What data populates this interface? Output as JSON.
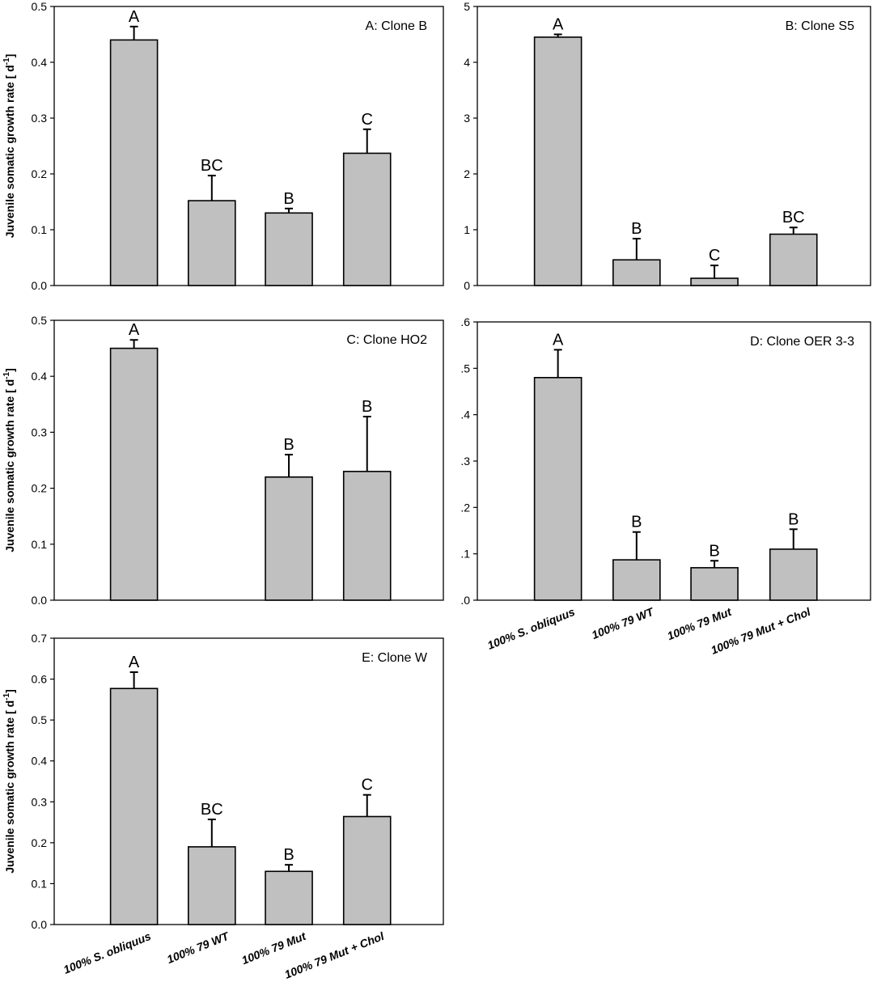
{
  "figure": {
    "ylabel_main": "Juvenile somatic growth rate [ d",
    "ylabel_sup": "-1",
    "ylabel_close": "]",
    "categories": [
      "100% S. obliquus",
      "100% 79 WT",
      "100% 79 Mut",
      "100% 79 Mut + Chol"
    ]
  },
  "chart_data": [
    {
      "type": "bar",
      "title": "A: Clone B",
      "ylim": [
        0,
        0.5
      ],
      "yticks": [
        "0.0",
        "0.1",
        "0.2",
        "0.3",
        "0.4",
        "0.5"
      ],
      "values": [
        0.44,
        0.152,
        0.13,
        0.237
      ],
      "errors": [
        0.024,
        0.045,
        0.008,
        0.043
      ],
      "letters": [
        "A",
        "BC",
        "B",
        "C"
      ]
    },
    {
      "type": "bar",
      "title": "B: Clone S5",
      "ylim": [
        0,
        5
      ],
      "yticks": [
        "0",
        "1",
        "2",
        "3",
        "4",
        "5"
      ],
      "values": [
        4.45,
        0.46,
        0.13,
        0.92
      ],
      "errors": [
        0.05,
        0.38,
        0.23,
        0.12
      ],
      "letters": [
        "A",
        "B",
        "C",
        "BC"
      ]
    },
    {
      "type": "bar",
      "title": "C: Clone HO2",
      "ylim": [
        0,
        0.5
      ],
      "yticks": [
        "0.0",
        "0.1",
        "0.2",
        "0.3",
        "0.4",
        "0.5"
      ],
      "values": [
        0.45,
        null,
        0.22,
        0.23
      ],
      "errors": [
        0.015,
        null,
        0.04,
        0.098
      ],
      "letters": [
        "A",
        "",
        "B",
        "B"
      ]
    },
    {
      "type": "bar",
      "title": "D: Clone OER 3-3",
      "ylim": [
        0,
        0.6
      ],
      "yticks": [
        ".0",
        ".1",
        ".2",
        ".3",
        ".4",
        ".5",
        ".6"
      ],
      "values": [
        0.48,
        0.087,
        0.07,
        0.11
      ],
      "errors": [
        0.06,
        0.06,
        0.015,
        0.043
      ],
      "letters": [
        "A",
        "B",
        "B",
        "B"
      ]
    },
    {
      "type": "bar",
      "title": "E: Clone W",
      "ylim": [
        0,
        0.7
      ],
      "yticks": [
        "0.0",
        "0.1",
        "0.2",
        "0.3",
        "0.4",
        "0.5",
        "0.6",
        "0.7"
      ],
      "values": [
        0.577,
        0.19,
        0.13,
        0.264
      ],
      "errors": [
        0.04,
        0.067,
        0.016,
        0.053
      ],
      "letters": [
        "A",
        "BC",
        "B",
        "C"
      ]
    }
  ]
}
